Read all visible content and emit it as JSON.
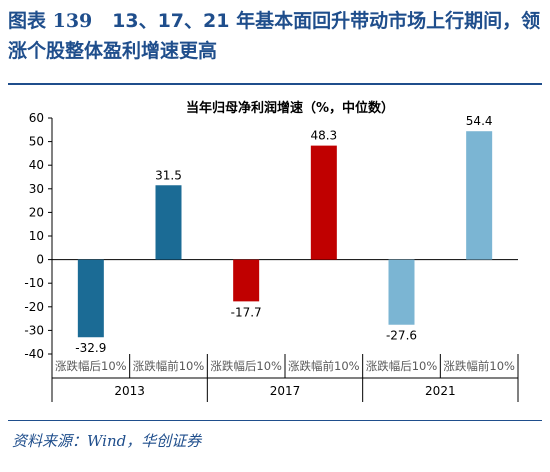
{
  "figure": {
    "label": "图表 139",
    "title": "13、17、21 年基本面回升带动市场上行期间，领涨个股整体盈利增速更高"
  },
  "source": "资料来源：Wind，华创证券",
  "chart_data": {
    "type": "bar",
    "title": "当年归母净利润增速（%，中位数）",
    "categories": [
      "涨跌幅后10%",
      "涨跌幅前10%",
      "涨跌幅后10%",
      "涨跌幅前10%",
      "涨跌幅后10%",
      "涨跌幅前10%"
    ],
    "groups": [
      "2013",
      "2017",
      "2021"
    ],
    "values": [
      -32.9,
      31.5,
      -17.7,
      48.3,
      -27.6,
      54.4
    ],
    "value_labels": [
      "-32.9",
      "31.5",
      "-17.7",
      "48.3",
      "-27.6",
      "54.4"
    ],
    "bar_colors": [
      "#1b6b95",
      "#1b6b95",
      "#c00000",
      "#c00000",
      "#7bb5d3",
      "#7bb5d3"
    ],
    "ylim": [
      -40,
      60
    ],
    "yticks": [
      "-40",
      "-30",
      "-20",
      "-10",
      "0",
      "10",
      "20",
      "30",
      "40",
      "50",
      "60"
    ],
    "xlabel": "",
    "ylabel": "",
    "grid": false,
    "legend": "none"
  }
}
